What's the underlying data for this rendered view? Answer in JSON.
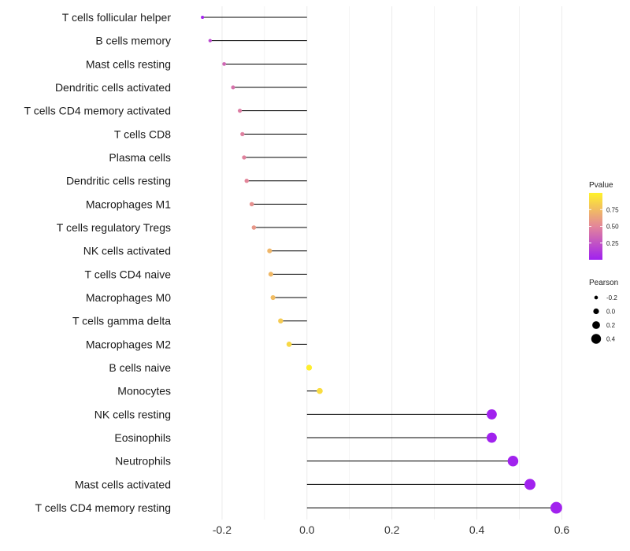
{
  "chart_data": {
    "type": "lollipop",
    "title": "",
    "xlabel": "",
    "ylabel": "",
    "xlim": [
      -0.3,
      0.64
    ],
    "x_ticks": [
      -0.2,
      0.0,
      0.2,
      0.4,
      0.6
    ],
    "x_tick_labels": [
      "-0.2",
      "0.0",
      "0.2",
      "0.4",
      "0.6"
    ],
    "grid": true,
    "categories": [
      "T cells follicular helper",
      "B cells memory",
      "Mast cells resting",
      "Dendritic cells activated",
      "T cells CD4 memory activated",
      "T cells CD8",
      "Plasma cells",
      "Dendritic cells resting",
      "Macrophages M1",
      "T cells regulatory  Tregs ",
      "NK cells activated",
      "T cells CD4 naive",
      "Macrophages M0",
      "T cells gamma delta",
      "Macrophages M2",
      "B cells naive",
      "Monocytes",
      "NK cells resting",
      "Eosinophils",
      "Neutrophils",
      "Mast cells activated",
      "T cells CD4 memory resting"
    ],
    "pearson": [
      -0.246,
      -0.228,
      -0.195,
      -0.174,
      -0.158,
      -0.152,
      -0.148,
      -0.142,
      -0.13,
      -0.125,
      -0.088,
      -0.085,
      -0.08,
      -0.062,
      -0.042,
      0.005,
      0.03,
      0.435,
      0.435,
      0.485,
      0.525,
      0.587
    ],
    "pvalue": [
      0.02,
      0.2,
      0.35,
      0.4,
      0.45,
      0.47,
      0.48,
      0.5,
      0.55,
      0.58,
      0.72,
      0.73,
      0.75,
      0.82,
      0.88,
      0.98,
      0.9,
      0.01,
      0.01,
      0.01,
      0.01,
      0.01
    ],
    "legend": {
      "color_title": "Pvalue",
      "color_ticks": [
        0.75,
        0.5,
        0.25
      ],
      "color_tick_labels": [
        "0.75",
        "0.50",
        "0.25"
      ],
      "color_low": "#a020f0",
      "color_mid": "#e3869a",
      "color_high": "#fff22a",
      "size_title": "Pearson",
      "size_values": [
        -0.2,
        0.0,
        0.2,
        0.4
      ],
      "size_labels": [
        "-0.2",
        "0.0",
        "0.2",
        "0.4"
      ]
    },
    "colors": {
      "stem": "#000000",
      "grid": "#ebebeb",
      "background": "#ffffff"
    }
  }
}
